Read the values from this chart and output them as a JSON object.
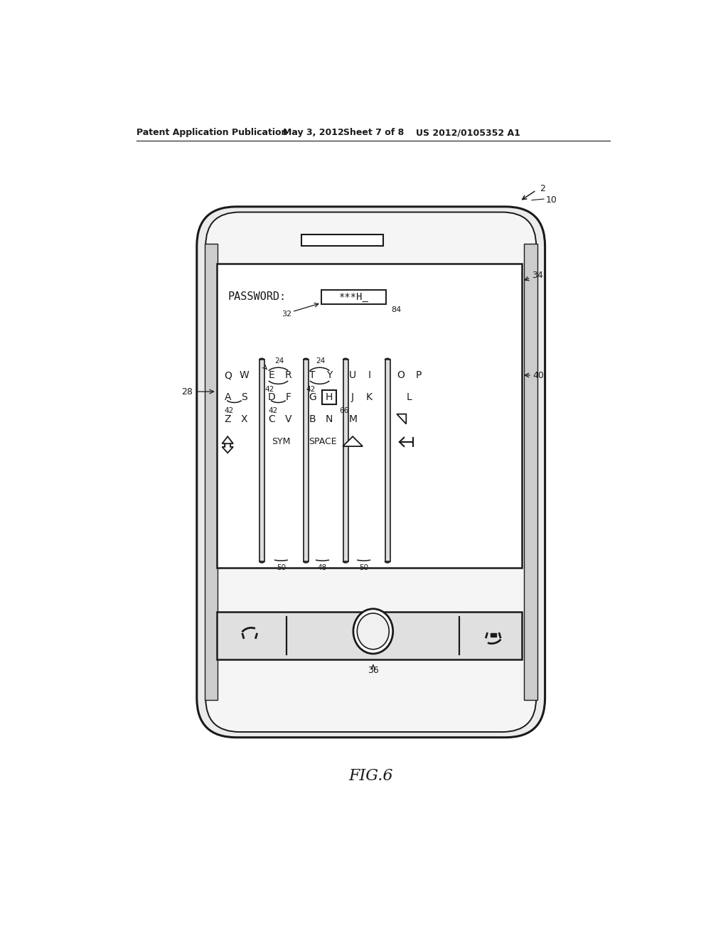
{
  "bg_color": "#ffffff",
  "line_color": "#1a1a1a",
  "header_text": "Patent Application Publication",
  "header_date": "May 3, 2012",
  "header_sheet": "Sheet 7 of 8",
  "header_patent": "US 2012/0105352 A1",
  "figure_label": "FIG.6",
  "label_2": "2",
  "label_10": "10",
  "label_28": "28",
  "label_32": "32",
  "label_34": "34",
  "label_36": "36",
  "label_40": "40",
  "label_48": "48",
  "label_50a": "50",
  "label_50b": "50",
  "label_66": "66",
  "label_84": "84",
  "label_24a": "24",
  "label_24b": "24",
  "label_42a": "42",
  "label_42b": "42",
  "label_42c": "42",
  "label_42d": "42",
  "password_text": "PASSWORD:",
  "input_text": "***H_"
}
